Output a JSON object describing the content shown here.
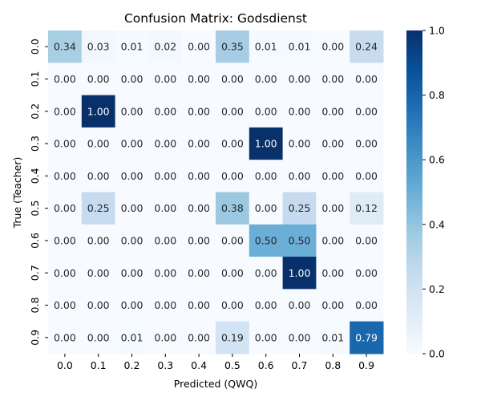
{
  "chart_data": {
    "type": "heatmap",
    "title": "Confusion Matrix: Godsdienst",
    "xlabel": "Predicted (QWQ)",
    "ylabel": "True (Teacher)",
    "x_categories": [
      "0.0",
      "0.1",
      "0.2",
      "0.3",
      "0.4",
      "0.5",
      "0.6",
      "0.7",
      "0.8",
      "0.9"
    ],
    "y_categories": [
      "0.0",
      "0.1",
      "0.2",
      "0.3",
      "0.4",
      "0.5",
      "0.6",
      "0.7",
      "0.8",
      "0.9"
    ],
    "values": [
      [
        0.34,
        0.03,
        0.01,
        0.02,
        0.0,
        0.35,
        0.01,
        0.01,
        0.0,
        0.24
      ],
      [
        0.0,
        0.0,
        0.0,
        0.0,
        0.0,
        0.0,
        0.0,
        0.0,
        0.0,
        0.0
      ],
      [
        0.0,
        1.0,
        0.0,
        0.0,
        0.0,
        0.0,
        0.0,
        0.0,
        0.0,
        0.0
      ],
      [
        0.0,
        0.0,
        0.0,
        0.0,
        0.0,
        0.0,
        1.0,
        0.0,
        0.0,
        0.0
      ],
      [
        0.0,
        0.0,
        0.0,
        0.0,
        0.0,
        0.0,
        0.0,
        0.0,
        0.0,
        0.0
      ],
      [
        0.0,
        0.25,
        0.0,
        0.0,
        0.0,
        0.38,
        0.0,
        0.25,
        0.0,
        0.12
      ],
      [
        0.0,
        0.0,
        0.0,
        0.0,
        0.0,
        0.0,
        0.5,
        0.5,
        0.0,
        0.0
      ],
      [
        0.0,
        0.0,
        0.0,
        0.0,
        0.0,
        0.0,
        0.0,
        1.0,
        0.0,
        0.0
      ],
      [
        0.0,
        0.0,
        0.0,
        0.0,
        0.0,
        0.0,
        0.0,
        0.0,
        0.0,
        0.0
      ],
      [
        0.0,
        0.0,
        0.01,
        0.0,
        0.0,
        0.19,
        0.0,
        0.0,
        0.01,
        0.79
      ]
    ],
    "value_format": "0.00",
    "colormap": "Blues",
    "colorbar": {
      "range": [
        0.0,
        1.0
      ],
      "ticks": [
        "0.0",
        "0.2",
        "0.4",
        "0.6",
        "0.8",
        "1.0"
      ]
    }
  }
}
